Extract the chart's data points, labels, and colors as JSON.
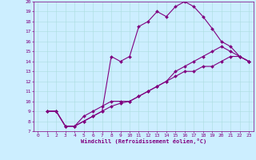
{
  "xlabel": "Windchill (Refroidissement éolien,°C)",
  "bg_color": "#cceeff",
  "line_color": "#800080",
  "grid_color": "#aadddd",
  "xlim": [
    -0.5,
    23.5
  ],
  "ylim": [
    7,
    20
  ],
  "yticks": [
    7,
    8,
    9,
    10,
    11,
    12,
    13,
    14,
    15,
    16,
    17,
    18,
    19,
    20
  ],
  "xticks": [
    0,
    1,
    2,
    3,
    4,
    5,
    6,
    7,
    8,
    9,
    10,
    11,
    12,
    13,
    14,
    15,
    16,
    17,
    18,
    19,
    20,
    21,
    22,
    23
  ],
  "line1_x": [
    1,
    2,
    3,
    4,
    5,
    6,
    7,
    8,
    9,
    10,
    11,
    12,
    13,
    14,
    15,
    16,
    17,
    18,
    19,
    20,
    21,
    22,
    23
  ],
  "line1_y": [
    9,
    9,
    7.5,
    7.5,
    8.0,
    8.5,
    9.0,
    14.5,
    14.0,
    14.5,
    17.5,
    18.0,
    19.0,
    18.5,
    19.5,
    20.0,
    19.5,
    18.5,
    17.3,
    16.0,
    15.5,
    14.5,
    14.0
  ],
  "line2_x": [
    1,
    2,
    3,
    4,
    5,
    6,
    7,
    8,
    9,
    10,
    11,
    12,
    13,
    14,
    15,
    16,
    17,
    18,
    19,
    20,
    21,
    22,
    23
  ],
  "line2_y": [
    9,
    9,
    7.5,
    7.5,
    8.5,
    9.0,
    9.5,
    10.0,
    10.0,
    10.0,
    10.5,
    11.0,
    11.5,
    12.0,
    13.0,
    13.5,
    14.0,
    14.5,
    15.0,
    15.5,
    15.0,
    14.5,
    14.0
  ],
  "line3_x": [
    1,
    2,
    3,
    4,
    5,
    6,
    7,
    8,
    9,
    10,
    11,
    12,
    13,
    14,
    15,
    16,
    17,
    18,
    19,
    20,
    21,
    22,
    23
  ],
  "line3_y": [
    9,
    9,
    7.5,
    7.5,
    8.0,
    8.5,
    9.0,
    9.5,
    9.8,
    10.0,
    10.5,
    11.0,
    11.5,
    12.0,
    12.5,
    13.0,
    13.0,
    13.5,
    13.5,
    14.0,
    14.5,
    14.5,
    14.0
  ],
  "tick_fontsize": 4.5,
  "xlabel_fontsize": 5.0,
  "marker_size": 2.0,
  "line_width": 0.8
}
